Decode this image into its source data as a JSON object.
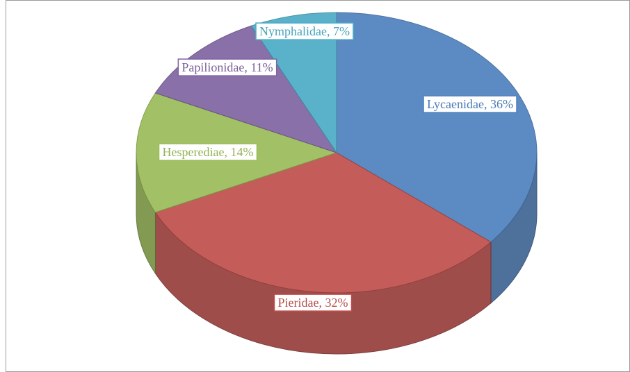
{
  "chart_data": {
    "type": "pie",
    "values": [
      36,
      32,
      14,
      11,
      7
    ],
    "value_labels": [
      "Lycaenidae, 36%",
      "Pieridae, 32%",
      "Hesperediae, 14%",
      "Papilionidae, 11%",
      "Nymphalidae, 7%"
    ],
    "colors": [
      "#4f81bd",
      "#c0504d",
      "#9bbb59",
      "#8064a2",
      "#4bacc6"
    ],
    "three_d": true
  }
}
